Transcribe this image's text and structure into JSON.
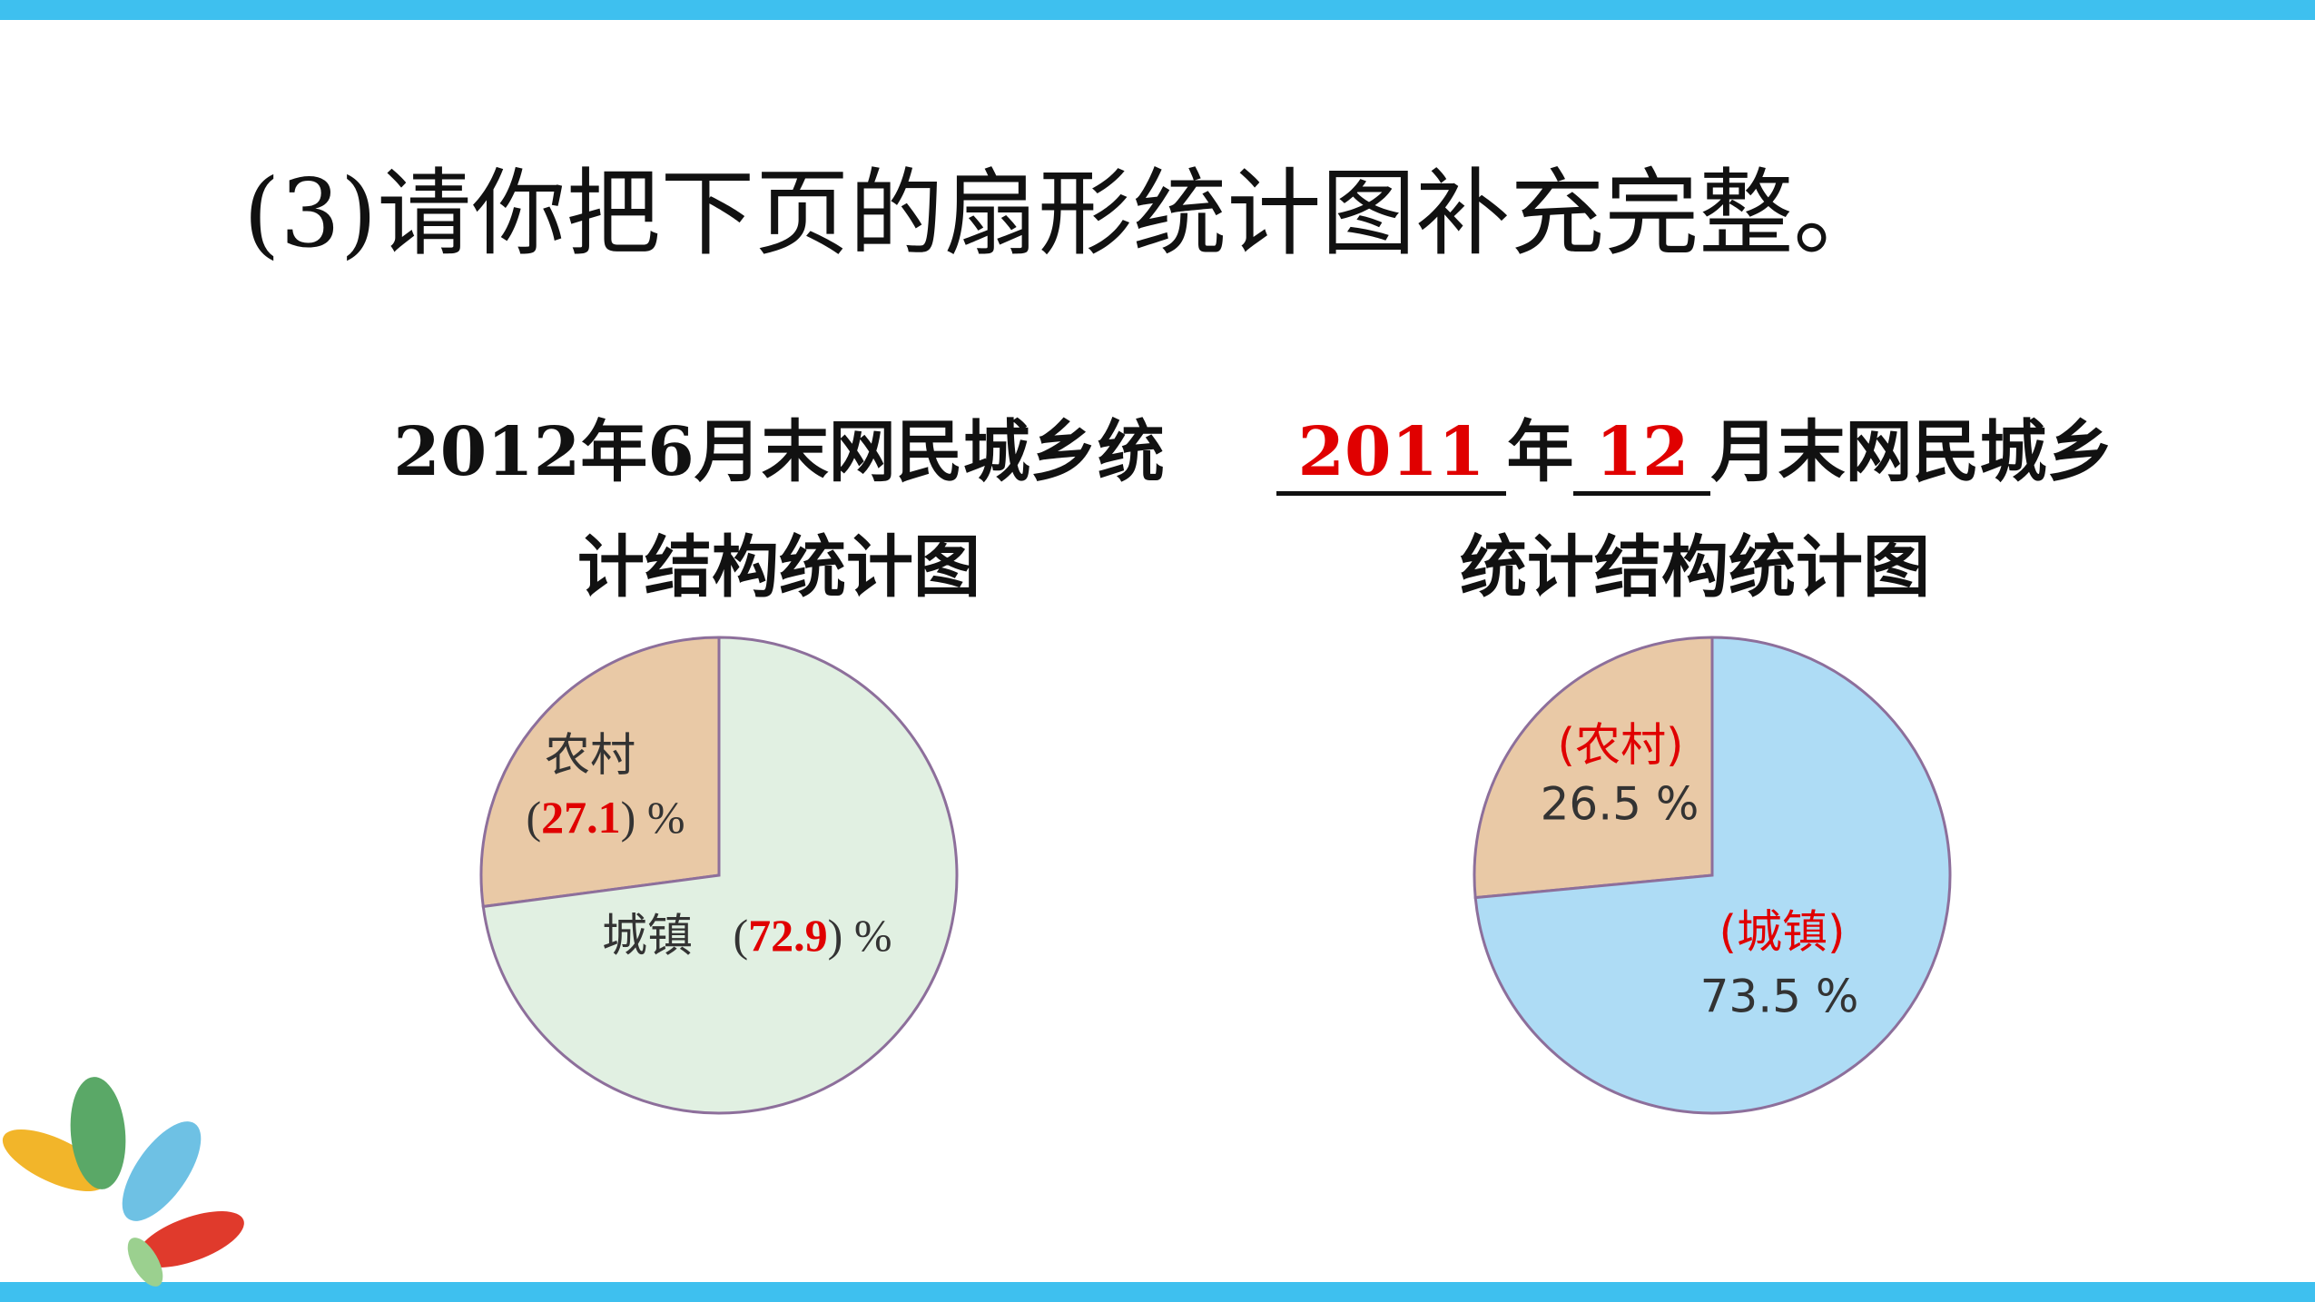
{
  "title": "(3)请你把下页的扇形统计图补充完整。",
  "chart_data": [
    {
      "type": "pie",
      "title": [
        "2012年6月末网民城乡统",
        "计结构统计图"
      ],
      "categories": [
        "农村",
        "城镇"
      ],
      "values": [
        27.1,
        72.9
      ],
      "value_labels": [
        "(27.1) %",
        "(72.9) %"
      ],
      "value_label_color": "#e00000",
      "colors": [
        "#e9c9a6",
        "#e1f0e2"
      ]
    },
    {
      "type": "pie",
      "title": {
        "year": "2011",
        "year_unit": "年",
        "month": "12",
        "line1_rest": "月末网民城乡",
        "line2": "统计结构统计图"
      },
      "categories": [
        "(农村)",
        "(城镇)"
      ],
      "values": [
        26.5,
        73.5
      ],
      "value_labels": [
        "26.5 %",
        "73.5 %"
      ],
      "category_color": "#e00000",
      "colors": [
        "#e9c9a6",
        "#aedcf5"
      ]
    }
  ]
}
